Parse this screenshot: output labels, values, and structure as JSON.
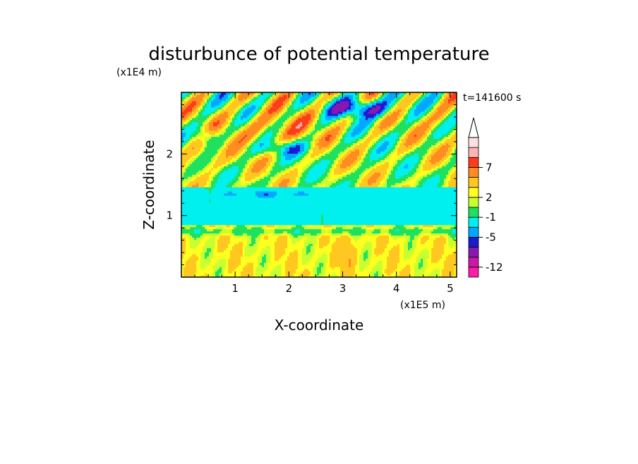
{
  "chart_data": {
    "type": "heatmap",
    "title": "disturbunce of potential temperature",
    "xlabel": "X-coordinate",
    "ylabel": "Z-coordinate",
    "x_unit": "(x1E5 m)",
    "y_unit": "(x1E4 m)",
    "time_label": "t=141600 s",
    "xlim": [
      0,
      5.12
    ],
    "ylim": [
      0,
      3.0
    ],
    "x_ticks": [
      1,
      2,
      3,
      4,
      5
    ],
    "x_tick_labels": [
      "1",
      "2",
      "3",
      "4",
      "5"
    ],
    "y_ticks": [
      1,
      2
    ],
    "y_tick_labels": [
      "1",
      "2"
    ],
    "colorbar": {
      "levels": [
        -12,
        -10,
        -7,
        -5,
        -3,
        -1,
        1,
        2,
        3,
        5,
        7,
        9,
        12
      ],
      "labels": [
        {
          "value": -12,
          "text": "-12"
        },
        {
          "value": -5,
          "text": "-5"
        },
        {
          "value": -1,
          "text": "-1"
        },
        {
          "value": 2,
          "text": "2"
        },
        {
          "value": 7,
          "text": "7"
        }
      ],
      "colors": [
        "#ff1aa8",
        "#cc18a8",
        "#8a18b0",
        "#1a1ad0",
        "#00a8ff",
        "#00f0f0",
        "#20e060",
        "#c8ff30",
        "#ffff20",
        "#ffc820",
        "#ff8c20",
        "#ff3c1a",
        "#ffb4b4",
        "#ffe0e0"
      ],
      "extend": "max"
    }
  }
}
